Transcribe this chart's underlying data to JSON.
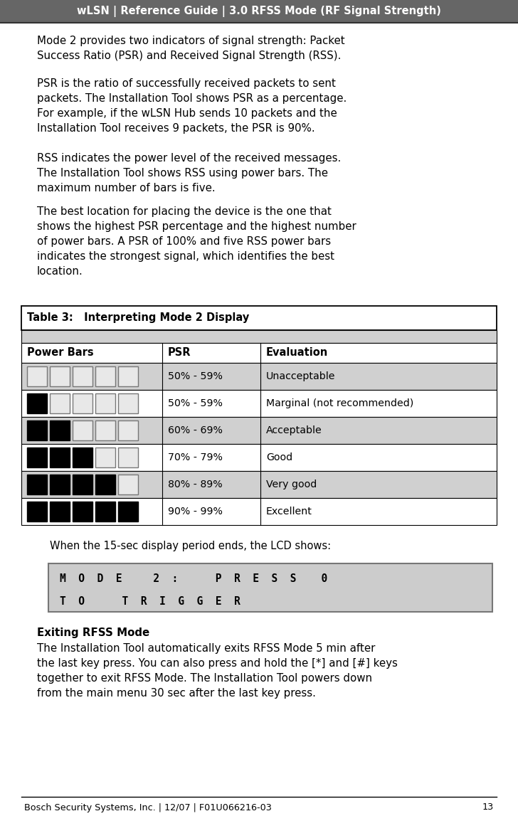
{
  "title_text": "wLSN | Reference Guide | 3.0 RFSS Mode (RF Signal Strength)",
  "title_bg": "#666666",
  "title_color": "#ffffff",
  "body_bg": "#ffffff",
  "para1": "Mode 2 provides two indicators of signal strength: Packet\nSuccess Ratio (PSR) and Received Signal Strength (RSS).",
  "para2": "PSR is the ratio of successfully received packets to sent\npackets. The Installation Tool shows PSR as a percentage.\nFor example, if the wLSN Hub sends 10 packets and the\nInstallation Tool receives 9 packets, the PSR is 90%.",
  "para3": "RSS indicates the power level of the received messages.\nThe Installation Tool shows RSS using power bars. The\nmaximum number of bars is five.",
  "para4": "The best location for placing the device is the one that\nshows the highest PSR percentage and the highest number\nof power bars. A PSR of 100% and five RSS power bars\nindicates the strongest signal, which identifies the best\nlocation.",
  "table_title": "Table 3:   Interpreting Mode 2 Display",
  "table_header": [
    "Power Bars",
    "PSR",
    "Evaluation"
  ],
  "table_rows": [
    {
      "filled": 0,
      "psr": "50% - 59%",
      "eval": "Unacceptable",
      "shaded": true
    },
    {
      "filled": 1,
      "psr": "50% - 59%",
      "eval": "Marginal (not recommended)",
      "shaded": false
    },
    {
      "filled": 2,
      "psr": "60% - 69%",
      "eval": "Acceptable",
      "shaded": true
    },
    {
      "filled": 3,
      "psr": "70% - 79%",
      "eval": "Good",
      "shaded": false
    },
    {
      "filled": 4,
      "psr": "80% - 89%",
      "eval": "Very good",
      "shaded": true
    },
    {
      "filled": 5,
      "psr": "90% - 99%",
      "eval": "Excellent",
      "shaded": false
    }
  ],
  "lcd_line1": "M  O  D  E     2  :      P  R  E  S  S    0",
  "lcd_line2": "T  O      T  R  I  G  G  E  R",
  "lcd_bg": "#cccccc",
  "section_heading": "Exiting RFSS Mode",
  "exit_para": "The Installation Tool automatically exits RFSS Mode 5 min after\nthe last key press. You can also press and hold the [*] and [#] keys\ntogether to exit RFSS Mode. The Installation Tool powers down\nfrom the main menu 30 sec after the last key press.",
  "footer_text": "Bosch Security Systems, Inc. | 12/07 | F01U066216-03",
  "footer_page": "13",
  "table_gray": "#d0d0d0",
  "text_color": "#000000",
  "bar_black": "#000000",
  "bar_empty_fill": "#e8e8e8",
  "bar_empty_stroke": "#777777"
}
